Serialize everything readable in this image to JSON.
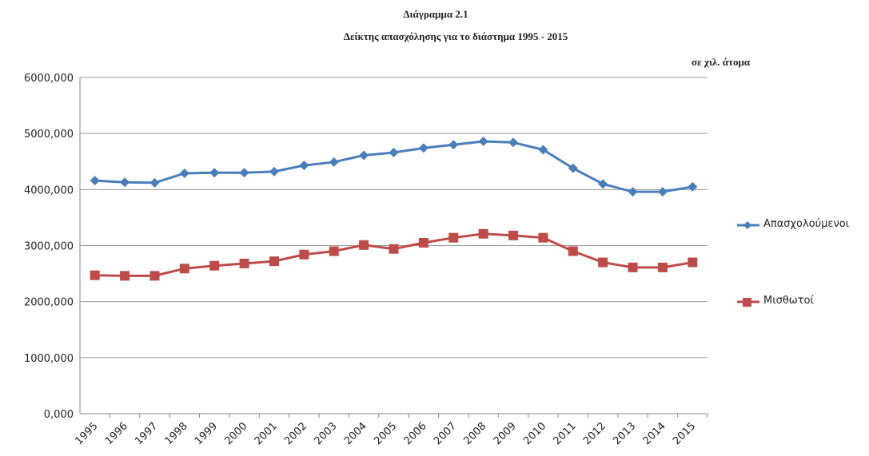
{
  "chart_data": {
    "type": "line",
    "title": "Διάγραμμα 2.1",
    "subtitle": "Δείκτης απασχόλησης για το διάστημα 1995 - 2015",
    "unit_note": "σε χιλ. άτομα",
    "categories": [
      "1995",
      "1996",
      "1997",
      "1998",
      "1999",
      "2000",
      "2001",
      "2002",
      "2003",
      "2004",
      "2005",
      "2006",
      "2007",
      "2008",
      "2009",
      "2010",
      "2011",
      "2012",
      "2013",
      "2014",
      "2015"
    ],
    "series": [
      {
        "name": "Απασχολούμενοι",
        "color": "#4a7ebb",
        "marker": "diamond",
        "values": [
          4160,
          4130,
          4120,
          4290,
          4300,
          4300,
          4320,
          4430,
          4490,
          4610,
          4660,
          4740,
          4800,
          4860,
          4840,
          4710,
          4380,
          4100,
          3960,
          3960,
          4050
        ]
      },
      {
        "name": "Μισθωτοί",
        "color": "#be4b48",
        "marker": "square",
        "values": [
          2470,
          2460,
          2460,
          2590,
          2640,
          2680,
          2720,
          2840,
          2900,
          3010,
          2940,
          3050,
          3140,
          3210,
          3180,
          3140,
          2900,
          2700,
          2610,
          2610,
          2700
        ]
      }
    ],
    "ylim": [
      0,
      6000
    ],
    "yticks": [
      {
        "value": 0,
        "label": "0,000"
      },
      {
        "value": 1000,
        "label": "1000,000"
      },
      {
        "value": 2000,
        "label": "2000,000"
      },
      {
        "value": 3000,
        "label": "3000,000"
      },
      {
        "value": 4000,
        "label": "4000,000"
      },
      {
        "value": 5000,
        "label": "5000,000"
      },
      {
        "value": 6000,
        "label": "6000,000"
      }
    ],
    "grid": true
  }
}
